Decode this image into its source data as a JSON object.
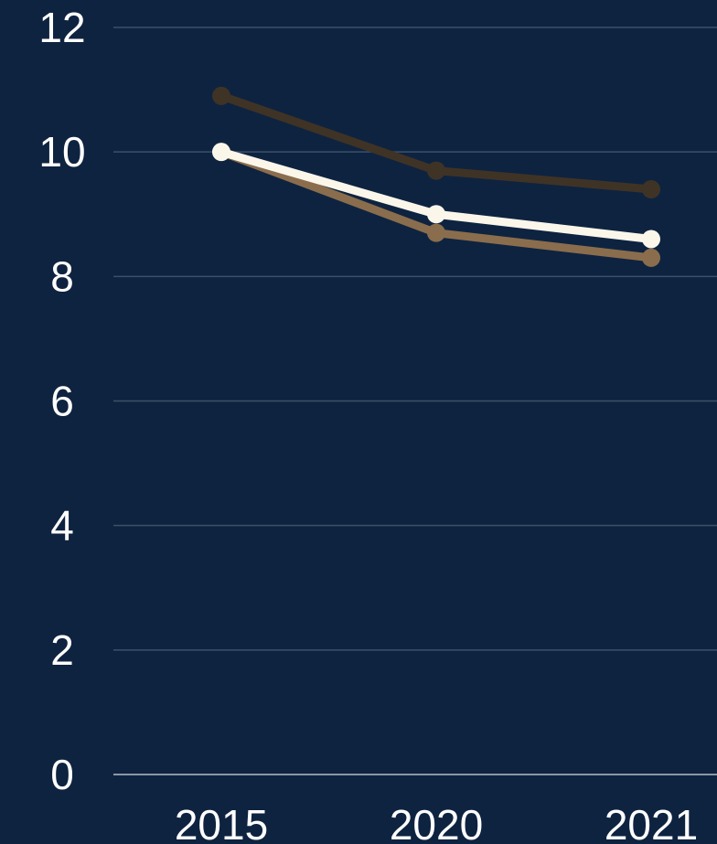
{
  "chart_data": {
    "type": "line",
    "categories": [
      "2015",
      "2020",
      "2021"
    ],
    "series": [
      {
        "values": [
          10.9,
          9.7,
          9.4
        ],
        "color": "#3f3326"
      },
      {
        "values": [
          10.0,
          8.7,
          8.3
        ],
        "color": "#8a6d4d"
      },
      {
        "values": [
          10.0,
          9.0,
          8.6
        ],
        "color": "#fbf6ea"
      }
    ],
    "y_ticks": [
      "0",
      "2",
      "4",
      "6",
      "8",
      "10",
      "12"
    ],
    "ylim": [
      0,
      12
    ],
    "grid": true,
    "title": "",
    "xlabel": "",
    "ylabel": ""
  },
  "colors": {
    "background": "#0e2340",
    "grid": "#3c5068",
    "baseline": "#8b97a6",
    "text": "#ffffff"
  }
}
